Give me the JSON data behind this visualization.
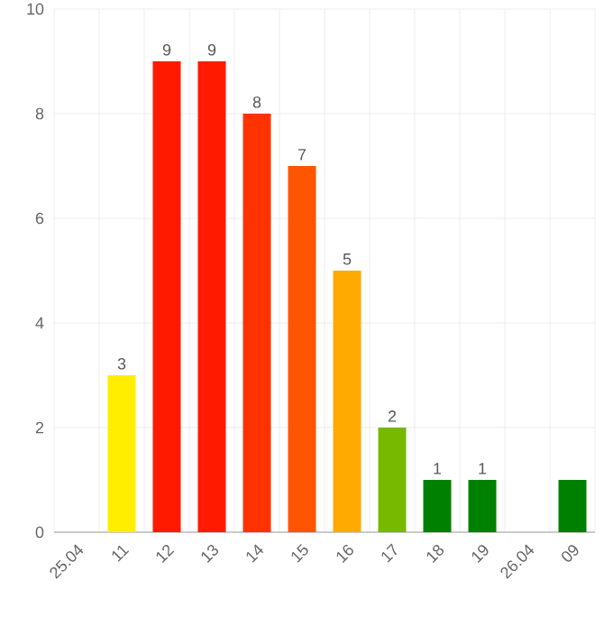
{
  "chart_data": {
    "type": "bar",
    "categories": [
      "25.04",
      "11",
      "12",
      "13",
      "14",
      "15",
      "16",
      "17",
      "18",
      "19",
      "26.04",
      "09"
    ],
    "values": [
      0,
      3,
      9,
      9,
      8,
      7,
      5,
      2,
      1,
      1,
      0,
      1
    ],
    "colors": [
      "#008000",
      "#ffee00",
      "#ff1a00",
      "#ff1a00",
      "#ff3300",
      "#ff5500",
      "#ffaa00",
      "#77b800",
      "#008000",
      "#008000",
      "#008000",
      "#008000"
    ],
    "value_labels": [
      null,
      "3",
      "9",
      "9",
      "8",
      "7",
      "5",
      "2",
      "1",
      "1",
      null,
      null
    ],
    "ylim": [
      0,
      10
    ],
    "yticks": [
      0,
      2,
      4,
      6,
      8,
      10
    ],
    "grid": true
  }
}
